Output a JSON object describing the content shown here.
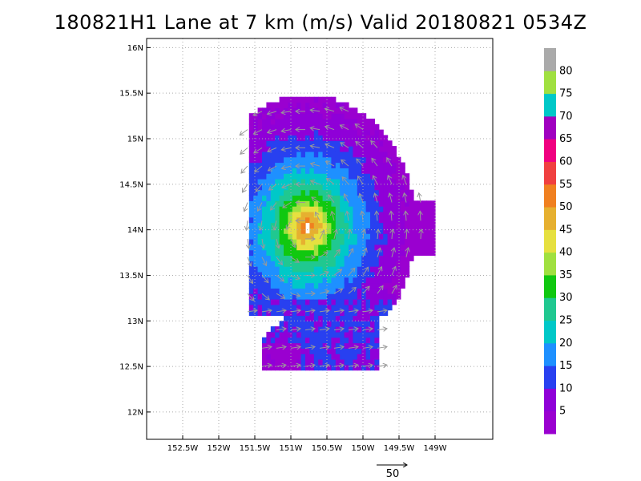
{
  "title": "180821H1 Lane at 7 km (m/s) Valid 20180821 0534Z",
  "reference_vector_label": "50",
  "chart_data": {
    "type": "heatmap",
    "title": "180821H1 Lane at 7 km (m/s) Valid 20180821 0534Z",
    "xlabel": "",
    "ylabel": "",
    "xlim": [
      -153,
      -148.2
    ],
    "ylim": [
      11.7,
      16.1
    ],
    "x_ticks": [
      {
        "value": -152.5,
        "label": "152.5W"
      },
      {
        "value": -152.0,
        "label": "152W"
      },
      {
        "value": -151.5,
        "label": "151.5W"
      },
      {
        "value": -151.0,
        "label": "151W"
      },
      {
        "value": -150.5,
        "label": "150.5W"
      },
      {
        "value": -150.0,
        "label": "150W"
      },
      {
        "value": -149.5,
        "label": "149.5W"
      },
      {
        "value": -149.0,
        "label": "149W"
      }
    ],
    "y_ticks": [
      {
        "value": 12.0,
        "label": "12N"
      },
      {
        "value": 12.5,
        "label": "12.5N"
      },
      {
        "value": 13.0,
        "label": "13N"
      },
      {
        "value": 13.5,
        "label": "13.5N"
      },
      {
        "value": 14.0,
        "label": "14N"
      },
      {
        "value": 14.5,
        "label": "14.5N"
      },
      {
        "value": 15.0,
        "label": "15N"
      },
      {
        "value": 15.5,
        "label": "15.5N"
      },
      {
        "value": 16.0,
        "label": "16N"
      }
    ],
    "grid": true,
    "center": {
      "lon": -150.8,
      "lat": 14.0
    },
    "max_wind": 60,
    "colorbar": {
      "labels": [
        "5",
        "10",
        "15",
        "20",
        "25",
        "30",
        "35",
        "40",
        "45",
        "50",
        "55",
        "60",
        "65",
        "70",
        "75",
        "80"
      ],
      "colors": [
        "#9a00d0",
        "#8f00d8",
        "#2840f0",
        "#1e90ff",
        "#00c8c8",
        "#20c890",
        "#10c810",
        "#a0e040",
        "#e6e040",
        "#e6b030",
        "#f08020",
        "#f04040",
        "#f00080",
        "#a000c0",
        "#00c8c8",
        "#a0e040",
        "#aaaaaa"
      ]
    },
    "legend_placement": "right"
  }
}
